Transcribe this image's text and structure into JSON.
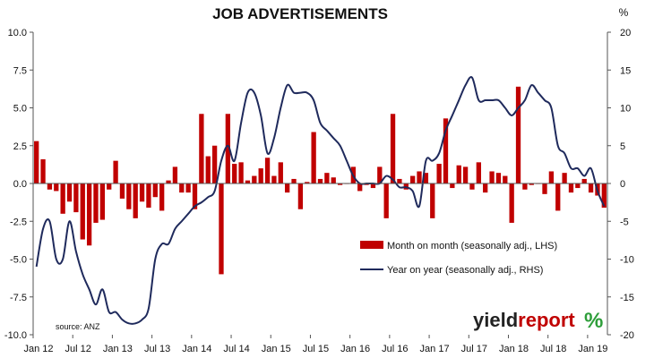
{
  "chart_data": {
    "type": "bar+line",
    "title": "JOB ADVERTISEMENTS",
    "left_axis_unit": "",
    "right_axis_unit": "%",
    "left_ylim": [
      -10,
      10
    ],
    "right_ylim": [
      -20,
      20
    ],
    "left_ticks": [
      "10.0",
      "7.5",
      "5.0",
      "2.5",
      "0.0",
      "-2.5",
      "-5.0",
      "-7.5",
      "-10.0"
    ],
    "right_ticks": [
      "20",
      "15",
      "10",
      "5",
      "0",
      "-5",
      "-10",
      "-15",
      "-20"
    ],
    "x_ticks": [
      {
        "label": "Jan 12",
        "month": 0
      },
      {
        "label": "Jul 12",
        "month": 6
      },
      {
        "label": "Jan 13",
        "month": 12
      },
      {
        "label": "Jul 13",
        "month": 18
      },
      {
        "label": "Jan 14",
        "month": 24
      },
      {
        "label": "Jul 14",
        "month": 30
      },
      {
        "label": "Jan 15",
        "month": 36
      },
      {
        "label": "Jul 15",
        "month": 42
      },
      {
        "label": "Jan 16",
        "month": 48
      },
      {
        "label": "Jul 16",
        "month": 54
      },
      {
        "label": "Jan 17",
        "month": 60
      },
      {
        "label": "Jul 17",
        "month": 66
      },
      {
        "label": "Jan 18",
        "month": 72
      },
      {
        "label": "Jul 18",
        "month": 78
      },
      {
        "label": "Jan 19",
        "month": 84
      }
    ],
    "grid": false,
    "legend_position": "lower-right",
    "series": [
      {
        "name": "Month on month (seasonally adj., LHS)",
        "type": "bar",
        "axis": "left",
        "color": "#c00000",
        "values": [
          2.8,
          1.6,
          -0.4,
          -0.5,
          -2.0,
          -1.2,
          -1.9,
          -3.7,
          -4.1,
          -2.6,
          -2.4,
          -0.4,
          1.5,
          -1.0,
          -1.7,
          -2.3,
          -1.2,
          -1.6,
          -0.9,
          -1.8,
          0.2,
          1.1,
          -0.6,
          -0.6,
          -1.7,
          4.6,
          1.8,
          2.5,
          -6.0,
          4.6,
          1.3,
          1.4,
          0.2,
          0.5,
          1.0,
          1.7,
          0.5,
          1.4,
          -0.6,
          0.3,
          -1.7,
          0.1,
          3.4,
          0.3,
          0.7,
          0.4,
          -0.1,
          0.0,
          1.1,
          -0.5,
          -0.1,
          -0.3,
          1.1,
          -2.3,
          4.6,
          0.3,
          -0.4,
          0.5,
          0.8,
          0.7,
          -2.3,
          1.3,
          4.3,
          -0.3,
          1.2,
          1.1,
          -0.4,
          1.4,
          -0.6,
          0.8,
          0.7,
          0.5,
          -2.6,
          6.4,
          -0.4,
          -0.1,
          0.0,
          -0.7,
          0.8,
          -1.8,
          0.7,
          -0.6,
          -0.3,
          0.3,
          -0.6,
          -0.8,
          -1.6
        ]
      },
      {
        "name": "Year on year (seasonally adj., RHS)",
        "type": "line",
        "axis": "right",
        "color": "#1f2a5c",
        "values": [
          -11,
          -6,
          -5,
          -10,
          -10,
          -5,
          -9,
          -12,
          -14,
          -16,
          -14,
          -17,
          -17,
          -18,
          -18.5,
          -18.5,
          -18,
          -16.5,
          -10,
          -8,
          -8,
          -6,
          -5,
          -4,
          -3,
          -2.5,
          -1.8,
          -1,
          3,
          5,
          3,
          8,
          12,
          12,
          9,
          4,
          6,
          10,
          13,
          12,
          12,
          12,
          11,
          8,
          7,
          6,
          5,
          3,
          1,
          0,
          0,
          0,
          0,
          1,
          0.5,
          -0.5,
          -0.5,
          -1,
          -3,
          3,
          3,
          4,
          7,
          9,
          11,
          13,
          14,
          11,
          11,
          11,
          11,
          10,
          9,
          10,
          11,
          13,
          12,
          11,
          10,
          5,
          4,
          2,
          2,
          1,
          2,
          -1,
          -3
        ]
      }
    ],
    "footnote": "source: ANZ",
    "logo": "yieldreport %"
  }
}
